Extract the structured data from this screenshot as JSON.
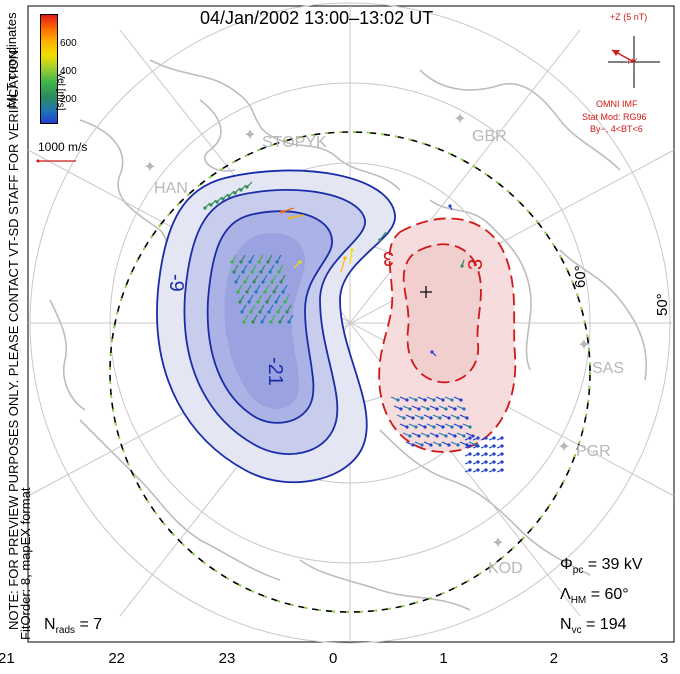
{
  "title": "04/Jan/2002 13:00–13:02 UT",
  "colorbar": {
    "label": "Vel [m/s]",
    "ticks": [
      "600",
      "400",
      "200"
    ],
    "colors": [
      "#e21a1a",
      "#ff6a00",
      "#ffb400",
      "#f0e000",
      "#9acd32",
      "#3cb44b",
      "#2e8b57",
      "#1f7ab0",
      "#1f3fd0"
    ]
  },
  "coordinates_label": "MLT coordinates",
  "reference_vector": "1000 m/s",
  "notice": [
    "NOTE: FOR PREVIEW PURPOSES ONLY. PLEASE CONTACT VT-SD STAFF FOR VERIFICATION.",
    "FitOrder: 8, mapEX format"
  ],
  "imf": {
    "scale": "+Z (5 nT)",
    "y_axis": "+Y",
    "source": "OMNI IMF",
    "model": "Stat Mod: RG96",
    "condition": "By−, 4<BT<6",
    "color": "#d01818"
  },
  "stations": [
    "STOPYK",
    "GBR",
    "HAN",
    "SAS",
    "PGR",
    "KOD"
  ],
  "latitude_labels": [
    "60°",
    "50°"
  ],
  "mlt_axis": [
    "21",
    "22",
    "23",
    "0",
    "1",
    "2",
    "3"
  ],
  "stats": {
    "phi_symbol": "Φ",
    "phi_sub": "pc",
    "phi_value": "= 39 kV",
    "lambda_symbol": "Λ",
    "lambda_sub": "HM",
    "lambda_value": "= 60°",
    "nvc_symbol": "N",
    "nvc_sub": "vc",
    "nvc_value": "= 194",
    "nrads_symbol": "N",
    "nrads_sub": "rads",
    "nrads_value": "= 7"
  },
  "chart_data": {
    "type": "contour",
    "title": "04/Jan/2002 13:00–13:02 UT",
    "x_axis_label": "",
    "x_ticks": [
      "21",
      "22",
      "23",
      "0",
      "1",
      "2",
      "3"
    ],
    "cross_polar_cap_potential_kV": 39,
    "heppner_maynard_boundary_lat_deg": 60,
    "vector_count": 194,
    "radar_count": 7,
    "contours": [
      {
        "label": "-9",
        "sign": "negative",
        "color": "#1a2ca8"
      },
      {
        "label": "-21",
        "sign": "negative",
        "color": "#1a2ca8"
      },
      {
        "label": "3",
        "sign": "positive",
        "color": "#d01818"
      },
      {
        "label": "3",
        "sign": "positive",
        "color": "#d01818"
      }
    ],
    "velocity_scale_ms": [
      200,
      400,
      600
    ],
    "reference_vector_ms": 1000
  }
}
